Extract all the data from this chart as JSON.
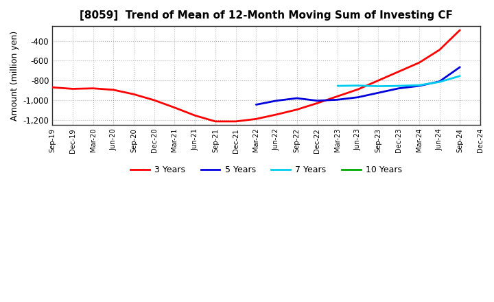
{
  "title": "[8059]  Trend of Mean of 12-Month Moving Sum of Investing CF",
  "ylabel": "Amount (million yen)",
  "ylim": [
    -1250,
    -250
  ],
  "yticks": [
    -1200,
    -1000,
    -800,
    -600,
    -400
  ],
  "background_color": "#ffffff",
  "grid_color": "#b0b0b0",
  "x_labels": [
    "Sep-19",
    "Dec-19",
    "Mar-20",
    "Jun-20",
    "Sep-20",
    "Dec-20",
    "Mar-21",
    "Jun-21",
    "Sep-21",
    "Dec-21",
    "Mar-22",
    "Jun-22",
    "Sep-22",
    "Dec-22",
    "Mar-23",
    "Jun-23",
    "Sep-23",
    "Dec-23",
    "Mar-24",
    "Jun-24",
    "Sep-24",
    "Dec-24"
  ],
  "series": {
    "3 Years": {
      "color": "#ff0000",
      "linewidth": 2.0,
      "values": [
        -870,
        -885,
        -880,
        -895,
        -940,
        -1000,
        -1075,
        -1155,
        -1215,
        -1215,
        -1190,
        -1145,
        -1095,
        -1030,
        -960,
        -890,
        -800,
        -710,
        -620,
        -490,
        -290,
        null
      ]
    },
    "5 Years": {
      "color": "#0000dd",
      "linewidth": 2.0,
      "values": [
        null,
        null,
        null,
        null,
        null,
        null,
        null,
        null,
        null,
        null,
        -1045,
        -1005,
        -980,
        -1005,
        -995,
        -970,
        -925,
        -880,
        -855,
        -810,
        -665,
        null
      ]
    },
    "7 Years": {
      "color": "#00ccee",
      "linewidth": 2.0,
      "values": [
        null,
        null,
        null,
        null,
        null,
        null,
        null,
        null,
        null,
        null,
        null,
        null,
        null,
        null,
        -855,
        -852,
        -858,
        -855,
        -848,
        -815,
        -755,
        null
      ]
    },
    "10 Years": {
      "color": "#00aa00",
      "linewidth": 2.0,
      "values": [
        null,
        null,
        null,
        null,
        null,
        null,
        null,
        null,
        null,
        null,
        null,
        null,
        null,
        null,
        null,
        null,
        null,
        null,
        null,
        null,
        null,
        null
      ]
    }
  },
  "legend": {
    "entries": [
      "3 Years",
      "5 Years",
      "7 Years",
      "10 Years"
    ],
    "colors": [
      "#ff0000",
      "#0000dd",
      "#00ccee",
      "#00aa00"
    ]
  }
}
